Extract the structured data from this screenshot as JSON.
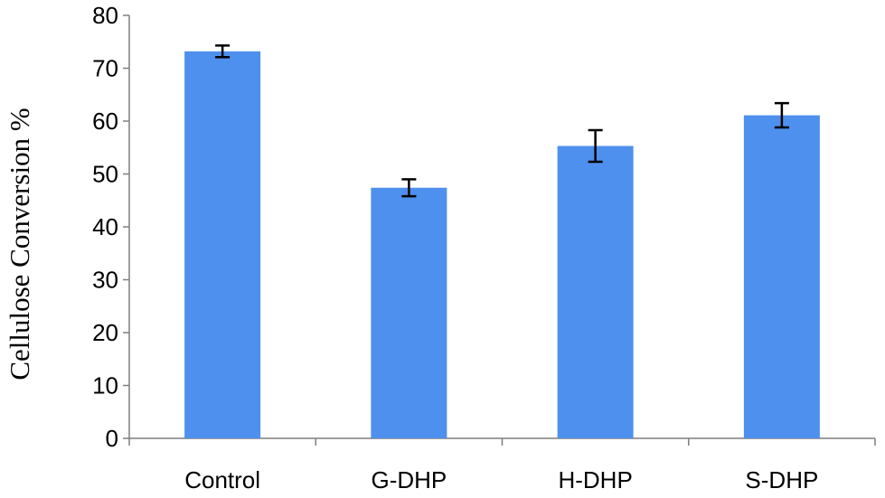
{
  "chart_data": {
    "type": "bar",
    "categories": [
      "Control",
      "G-DHP",
      "H-DHP",
      "S-DHP"
    ],
    "values": [
      73.2,
      47.4,
      55.3,
      61.1
    ],
    "error": [
      1.1,
      1.6,
      3.0,
      2.3
    ],
    "title": "",
    "xlabel": "",
    "ylabel": "Cellulose Conversion %",
    "ylim": [
      0,
      80
    ],
    "yticks": [
      0,
      10,
      20,
      30,
      40,
      50,
      60,
      70,
      80
    ],
    "grid": false,
    "legend": "none",
    "bar_color": "#4e90ed",
    "error_color": "#000000"
  }
}
